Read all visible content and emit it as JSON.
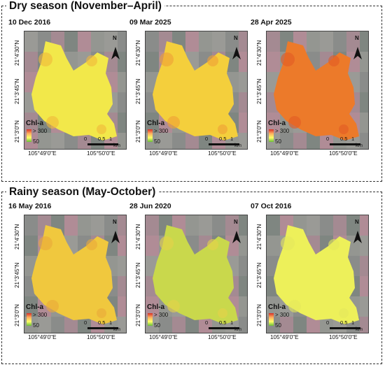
{
  "sections": [
    {
      "title": "Dry season (November–April)",
      "panels": [
        {
          "date": "10 Dec 2016",
          "water_color": "#f2e84a",
          "accent_color": "#f0b83a"
        },
        {
          "date": "09 Mar 2025",
          "water_color": "#f4cf3c",
          "accent_color": "#ef9f35"
        },
        {
          "date": "28 Apr 2025",
          "water_color": "#ec7a2a",
          "accent_color": "#e35a24"
        }
      ]
    },
    {
      "title": "Rainy season (May-October)",
      "panels": [
        {
          "date": "16 May 2016",
          "water_color": "#f0c83e",
          "accent_color": "#e9a83a"
        },
        {
          "date": "28 Jun 2020",
          "water_color": "#c9d84c",
          "accent_color": "#e6d24a"
        },
        {
          "date": "07 Oct 2016",
          "water_color": "#edf05a",
          "accent_color": "#e4e85c"
        }
      ]
    }
  ],
  "lat_labels": [
    "21°4'30\"N",
    "21°3'45\"N",
    "21°3'0\"N"
  ],
  "lon_labels": [
    "105°49'0\"E",
    "105°50'0\"E"
  ],
  "legend": {
    "title": "Chl-a",
    "max_label": "> 300",
    "min_label": "50"
  },
  "scale_bar": {
    "start": "0",
    "mid": "0.5",
    "end": "1",
    "unit": "km"
  },
  "north_label": "N",
  "colormap": [
    "#d73027",
    "#fdae61",
    "#ffff66",
    "#6abf3a"
  ]
}
